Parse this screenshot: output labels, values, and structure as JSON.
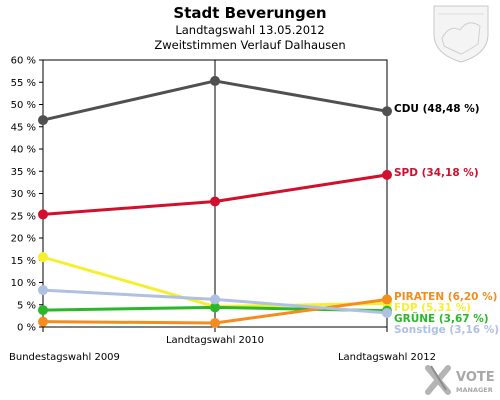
{
  "header": {
    "title": "Stadt Beverungen",
    "subtitle1": "Landtagswahl 13.05.2012",
    "subtitle2": "Zweitstimmen Verlauf Dalhausen"
  },
  "branding": {
    "logo_text": "VOTE",
    "logo_subtext": "MANAGER"
  },
  "chart_data": {
    "type": "line",
    "title": "Stadt Beverungen",
    "subtitle": [
      "Landtagswahl 13.05.2012",
      "Zweitstimmen Verlauf Dalhausen"
    ],
    "categories": [
      "Bundestagswahl 2009",
      "Landtagswahl 2010",
      "Landtagswahl 2012"
    ],
    "ylim": [
      0,
      60
    ],
    "yticks": [
      0,
      5,
      10,
      15,
      20,
      25,
      30,
      35,
      40,
      45,
      50,
      55,
      60
    ],
    "ytick_labels": [
      "0 %",
      "5 %",
      "10 %",
      "15 %",
      "20 %",
      "25 %",
      "30 %",
      "35 %",
      "40 %",
      "45 %",
      "50 %",
      "55 %",
      "60 %"
    ],
    "grid": false,
    "legend": "end-of-line labels (right)",
    "series": [
      {
        "name": "CDU",
        "label": "CDU (48,48 %)",
        "color": "#505050",
        "label_color": "#000000",
        "values": [
          46.5,
          55.3,
          48.48
        ]
      },
      {
        "name": "SPD",
        "label": "SPD (34,18 %)",
        "color": "#d0102c",
        "label_color": "#d0102c",
        "values": [
          25.3,
          28.2,
          34.18
        ]
      },
      {
        "name": "FDP",
        "label": "FDP (5,31 %)",
        "color": "#f4f030",
        "label_color": "#f4f030",
        "values": [
          15.7,
          4.6,
          5.31
        ]
      },
      {
        "name": "GRÜNE",
        "label": "GRÜNE (3,67 %)",
        "color": "#2ab82a",
        "label_color": "#2ab82a",
        "values": [
          3.8,
          4.4,
          3.67
        ]
      },
      {
        "name": "PIRATEN",
        "label": "PIRATEN (6,20 %)",
        "color": "#f58c1e",
        "label_color": "#f58c1e",
        "values": [
          1.2,
          0.9,
          6.2
        ]
      },
      {
        "name": "Sonstige",
        "label": "Sonstige (3,16 %)",
        "color": "#b0c0e0",
        "label_color": "#b0c0e0",
        "values": [
          8.3,
          6.2,
          3.16
        ]
      }
    ]
  }
}
